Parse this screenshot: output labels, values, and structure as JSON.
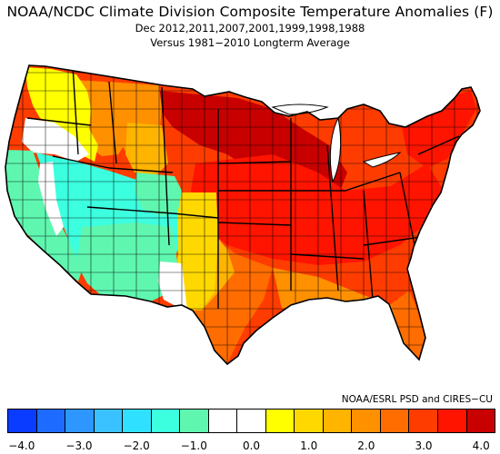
{
  "title": "NOAA/NCDC Climate Division Composite Temperature Anomalies (F)",
  "subtitle": "Dec  2012,2011,2007,2001,1999,1998,1988",
  "subtitle2": "Versus 1981−2010 Longterm Average",
  "credit": "NOAA/ESRL PSD and CIRES−CU",
  "colorbar": {
    "colors": [
      "#0a3cff",
      "#1e6cff",
      "#2d96ff",
      "#39c2ff",
      "#30e1ff",
      "#3cffe0",
      "#5ff7b0",
      "#ffffff",
      "#ffffff",
      "#ffff00",
      "#ffd800",
      "#ffb400",
      "#ff9000",
      "#ff6c00",
      "#ff3c00",
      "#ff1400",
      "#c80000"
    ],
    "ticks": [
      {
        "label": "−4.0",
        "value": -4.0
      },
      {
        "label": "−3.0",
        "value": -3.0
      },
      {
        "label": "−2.0",
        "value": -2.0
      },
      {
        "label": "−1.0",
        "value": -1.0
      },
      {
        "label": "0.0",
        "value": 0.0
      },
      {
        "label": "1.0",
        "value": 1.0
      },
      {
        "label": "2.0",
        "value": 2.0
      },
      {
        "label": "3.0",
        "value": 3.0
      },
      {
        "label": "4.0",
        "value": 4.0
      }
    ]
  },
  "region_colors": {
    "very_warm": "#c80000",
    "warm_red": "#ff1400",
    "orange_red": "#ff3c00",
    "orange": "#ff6c00",
    "light_orange": "#ff9000",
    "gold": "#ffb400",
    "yellow": "#ffff00",
    "neutral": "#ffffff",
    "cool_green": "#5ff7b0",
    "cool_teal": "#3cffe0"
  }
}
